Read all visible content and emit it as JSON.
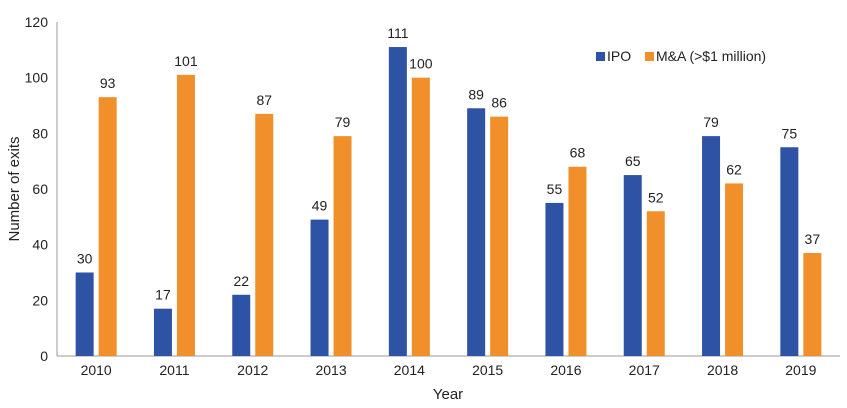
{
  "chart_data": {
    "type": "bar",
    "title": "",
    "xlabel": "Year",
    "ylabel": "Number of exits",
    "categories": [
      "2010",
      "2011",
      "2012",
      "2013",
      "2014",
      "2015",
      "2016",
      "2017",
      "2018",
      "2019"
    ],
    "series": [
      {
        "name": "IPO",
        "color": "#2E52A4",
        "values": [
          30,
          17,
          22,
          49,
          111,
          89,
          55,
          65,
          79,
          75
        ]
      },
      {
        "name": "M&A (>$1 million)",
        "color": "#F18F2B",
        "values": [
          93,
          101,
          87,
          79,
          100,
          86,
          68,
          52,
          62,
          37
        ]
      }
    ],
    "ylim": [
      0,
      120
    ],
    "yticks": [
      0,
      20,
      40,
      60,
      80,
      100,
      120
    ],
    "grid": false,
    "legend_position": "top-right"
  }
}
